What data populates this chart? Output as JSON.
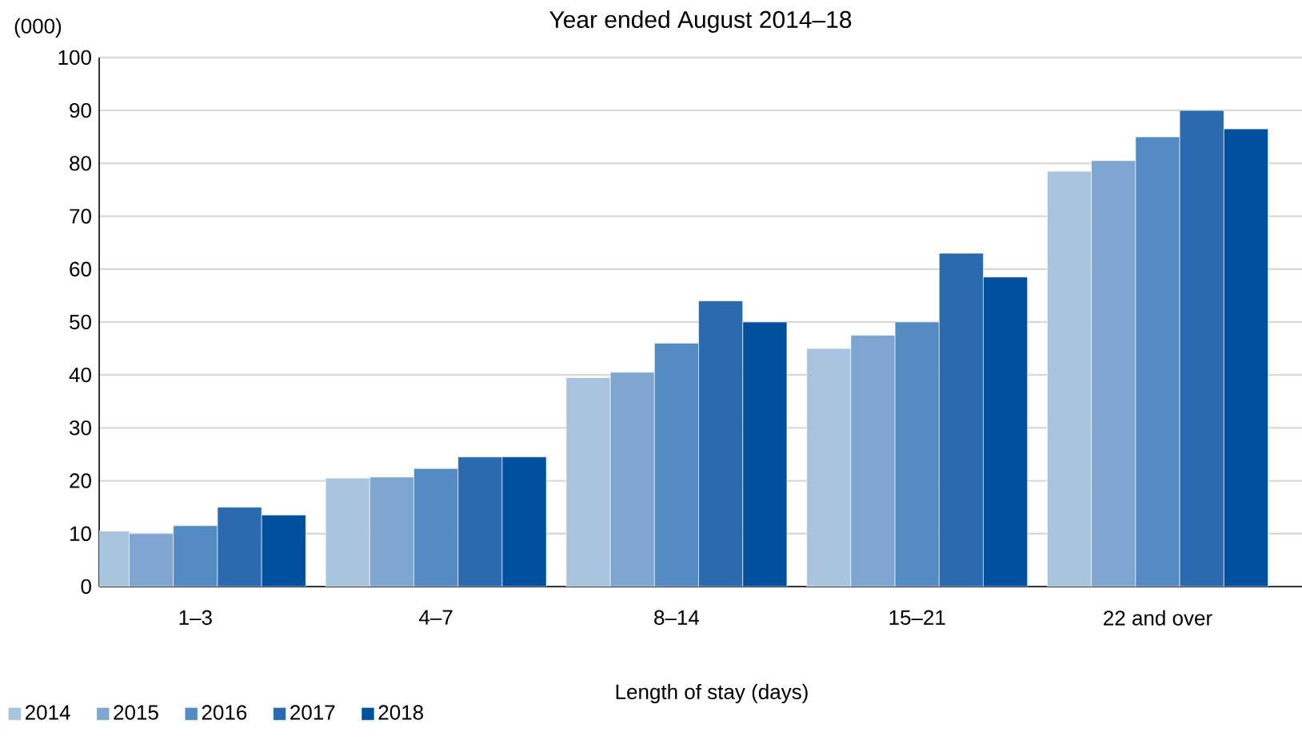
{
  "chart_data": {
    "type": "bar",
    "title": "Year ended August 2014–18",
    "ylabel": "(000)",
    "xlabel": "Length of  stay (days)",
    "categories": [
      "1–3",
      "4–7",
      "8–14",
      "15–21",
      "22 and over"
    ],
    "series": [
      {
        "name": "2014",
        "color": "#a9c4de",
        "values": [
          10.5,
          20.5,
          39.5,
          45,
          78.5
        ]
      },
      {
        "name": "2015",
        "color": "#7fa6d0",
        "values": [
          10,
          20.7,
          40.5,
          47.5,
          80.5
        ]
      },
      {
        "name": "2016",
        "color": "#538bc2",
        "values": [
          11.5,
          22.3,
          46,
          50,
          85
        ]
      },
      {
        "name": "2017",
        "color": "#2b6aae",
        "values": [
          15,
          24.5,
          54,
          63,
          90
        ]
      },
      {
        "name": "2018",
        "color": "#00509e",
        "values": [
          13.5,
          24.5,
          50,
          58.5,
          86.5
        ]
      }
    ],
    "ylim": [
      0,
      100
    ],
    "yticks": [
      0,
      10,
      20,
      30,
      40,
      50,
      60,
      70,
      80,
      90,
      100
    ],
    "grid": "y",
    "legend": "bottom left"
  }
}
